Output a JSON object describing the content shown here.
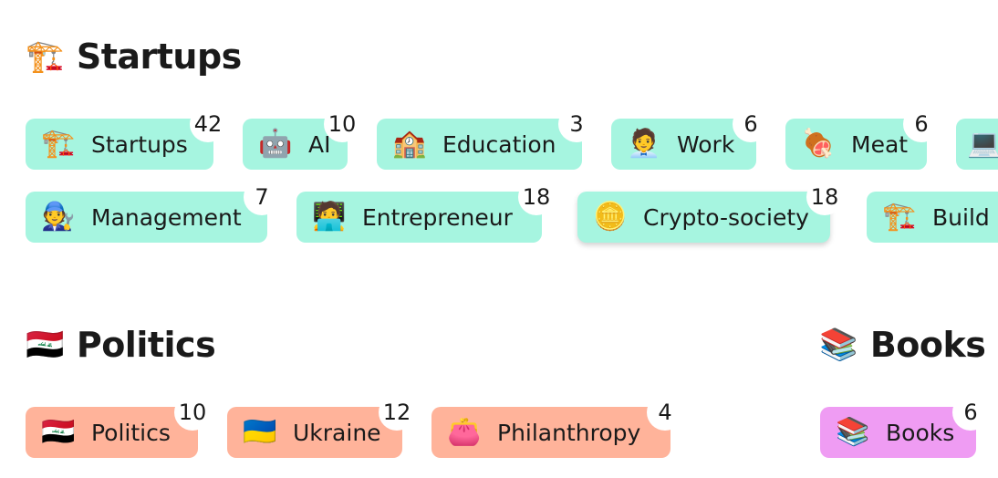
{
  "sections": {
    "startups": {
      "title": "Startups",
      "icon": "construction-crane-icon",
      "icon_glyph": "🏗️",
      "rows": [
        [
          {
            "label": "Startups",
            "count": "42",
            "icon": "construction-crane-icon",
            "glyph": "🏗️"
          },
          {
            "label": "AI",
            "count": "10",
            "icon": "robot-icon",
            "glyph": "🤖"
          },
          {
            "label": "Education",
            "count": "3",
            "icon": "school-building-icon",
            "glyph": "🏫"
          },
          {
            "label": "Work",
            "count": "6",
            "icon": "office-worker-icon",
            "glyph": "🧑‍💼"
          },
          {
            "label": "Meat",
            "count": "6",
            "icon": "meat-on-bone-icon",
            "glyph": "🍖"
          },
          {
            "label": "",
            "count": "",
            "icon": "laptop-icon",
            "glyph": "💻"
          }
        ],
        [
          {
            "label": "Management",
            "count": "7",
            "icon": "mechanic-icon",
            "glyph": "🧑‍🔧"
          },
          {
            "label": "Entrepreneur",
            "count": "18",
            "icon": "technologist-icon",
            "glyph": "🧑‍💻"
          },
          {
            "label": "Crypto-society",
            "count": "18",
            "icon": "coin-icon",
            "glyph": "🪙"
          },
          {
            "label": "Build",
            "count": "",
            "icon": "construction-crane-icon",
            "glyph": "🏗️"
          }
        ]
      ]
    },
    "politics": {
      "title": "Politics",
      "icon": "iraq-flag-icon",
      "icon_glyph": "🇮🇶",
      "chips": [
        {
          "label": "Politics",
          "count": "10",
          "icon": "iraq-flag-icon",
          "glyph": "🇮🇶"
        },
        {
          "label": "Ukraine",
          "count": "12",
          "icon": "ukraine-flag-icon",
          "glyph": "🇺🇦"
        },
        {
          "label": "Philanthropy",
          "count": "4",
          "icon": "purse-icon",
          "glyph": "👛"
        }
      ]
    },
    "books": {
      "title": "Books",
      "icon": "books-icon",
      "icon_glyph": "📚",
      "chips": [
        {
          "label": "Books",
          "count": "6",
          "icon": "books-icon",
          "glyph": "📚"
        }
      ]
    }
  },
  "colors": {
    "startups_chip": "#a6f5e0",
    "politics_chip": "#ffb39a",
    "books_chip": "#ef9cf3",
    "badge_bg": "#ffffff",
    "text": "#1a1a1a"
  }
}
